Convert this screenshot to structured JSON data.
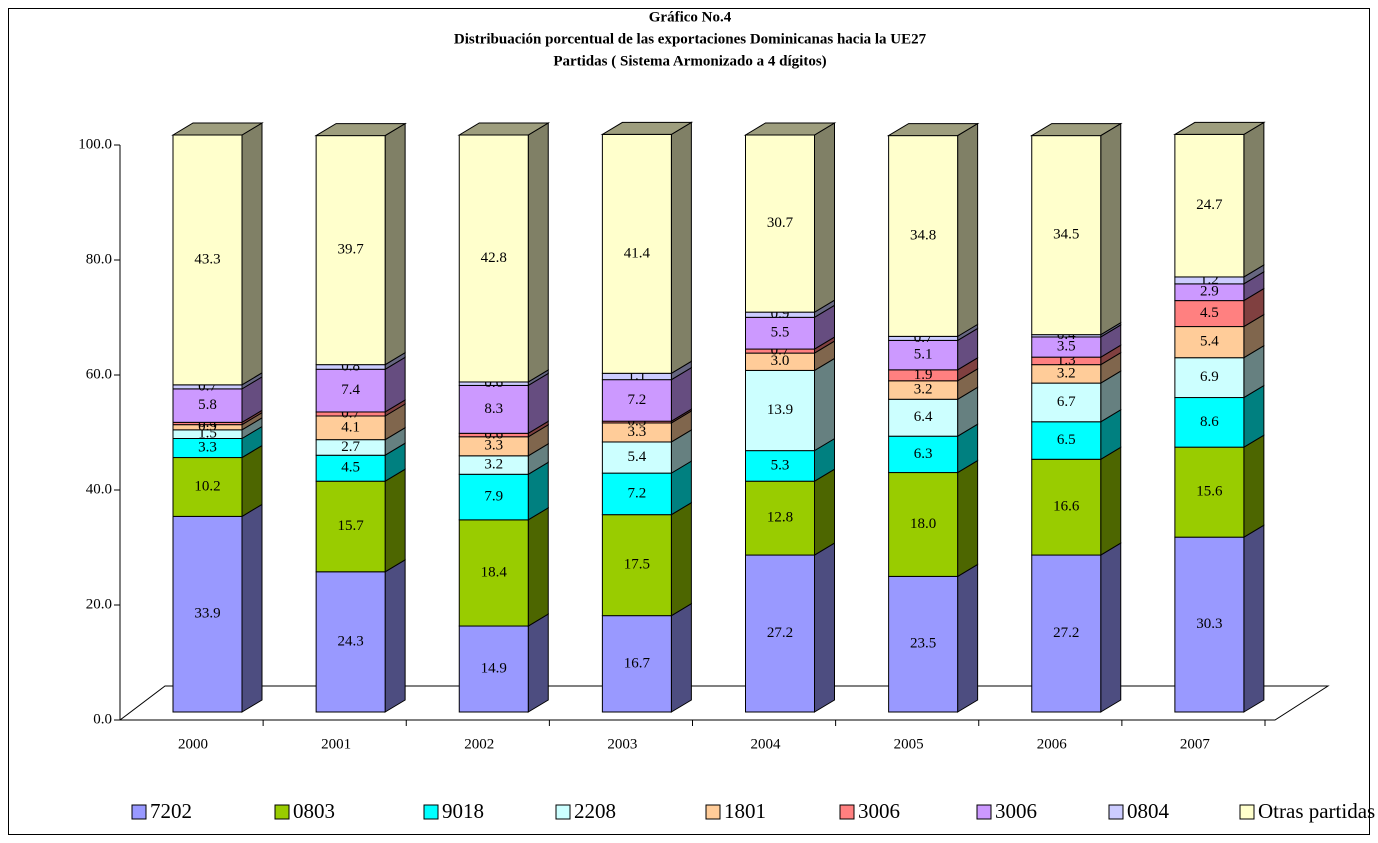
{
  "chart_data": {
    "type": "bar3d_stacked",
    "title": [
      "Gráfico No.4",
      "Distribuación porcentual de las exportaciones Dominicanas hacia la UE27",
      "Partidas ( Sistema Armonizado a 4 dígitos)"
    ],
    "categories": [
      "2000",
      "2001",
      "2002",
      "2003",
      "2004",
      "2005",
      "2006",
      "2007"
    ],
    "ylim": [
      0,
      100
    ],
    "yticks": [
      {
        "value": 0,
        "label": "0.0"
      },
      {
        "value": 20,
        "label": "20.0"
      },
      {
        "value": 40,
        "label": "40.0"
      },
      {
        "value": 60,
        "label": "60.0"
      },
      {
        "value": 80,
        "label": "80.0"
      },
      {
        "value": 100,
        "label": "100.0"
      }
    ],
    "legend": "bottom",
    "series": [
      {
        "name": "7202",
        "color": "#9999ff",
        "values": [
          33.9,
          24.3,
          14.9,
          16.7,
          27.2,
          23.5,
          27.2,
          30.3
        ],
        "value_labels": [
          "33.9",
          "24.3",
          "14.9",
          "16.7",
          "27.2",
          "23.5",
          "27.2",
          "30.3"
        ]
      },
      {
        "name": "0803",
        "color": "#99cc00",
        "values": [
          10.2,
          15.7,
          18.4,
          17.5,
          12.8,
          18,
          16.6,
          15.6
        ],
        "value_labels": [
          "10.2",
          "15.7",
          "18.4",
          "17.5",
          "12.8",
          "18.0",
          "16.6",
          "15.6"
        ]
      },
      {
        "name": "9018",
        "color": "#00ffff",
        "values": [
          3.3,
          4.5,
          7.9,
          7.2,
          5.3,
          6.3,
          6.5,
          8.6
        ],
        "value_labels": [
          "3.3",
          "4.5",
          "7.9",
          "7.2",
          "5.3",
          "6.3",
          "6.5",
          "8.6"
        ]
      },
      {
        "name": "2208",
        "color": "#ccffff",
        "values": [
          1.5,
          2.7,
          3.2,
          5.4,
          13.9,
          6.4,
          6.7,
          6.9
        ],
        "value_labels": [
          "1.5",
          "2.7",
          "3.2",
          "5.4",
          "13.9",
          "6.4",
          "6.7",
          "6.9"
        ]
      },
      {
        "name": "1801",
        "color": "#ffcc99",
        "values": [
          0.9,
          4.1,
          3.3,
          3.3,
          3,
          3.2,
          3.2,
          5.4
        ],
        "value_labels": [
          "0.9",
          "4.1",
          "3.3",
          "3.3",
          "3.0",
          "3.2",
          "3.2",
          "5.4"
        ]
      },
      {
        "name": "3006",
        "color": "#ff8080",
        "values": [
          0.4,
          0.7,
          0.6,
          0.3,
          0.7,
          1.9,
          1.3,
          4.5
        ],
        "value_labels": [
          "0.4",
          "0.7",
          "0.6",
          "0.3",
          "0.7",
          "1.9",
          "1.3",
          "4.5"
        ]
      },
      {
        "name": "3006",
        "color": "#cc99ff",
        "values": [
          5.8,
          7.4,
          8.3,
          7.2,
          5.5,
          5.1,
          3.5,
          2.9
        ],
        "value_labels": [
          "5.8",
          "7.4",
          "8.3",
          "7.2",
          "5.5",
          "5.1",
          "3.5",
          "2.9"
        ]
      },
      {
        "name": "0804",
        "color": "#ccccff",
        "values": [
          0.7,
          0.8,
          0.6,
          1.1,
          0.9,
          0.7,
          0.4,
          1.2
        ],
        "value_labels": [
          "0.7",
          "0.8",
          "0.6",
          "1.1",
          "0.9",
          "0.7",
          "0.4",
          "1.2"
        ]
      },
      {
        "name": "Otras partidas",
        "color": "#ffffcc",
        "values": [
          43.3,
          39.7,
          42.8,
          41.4,
          30.7,
          34.8,
          34.5,
          24.7
        ],
        "value_labels": [
          "43.3",
          "39.7",
          "42.8",
          "41.4",
          "30.7",
          "34.8",
          "34.5",
          "24.7"
        ]
      }
    ]
  }
}
